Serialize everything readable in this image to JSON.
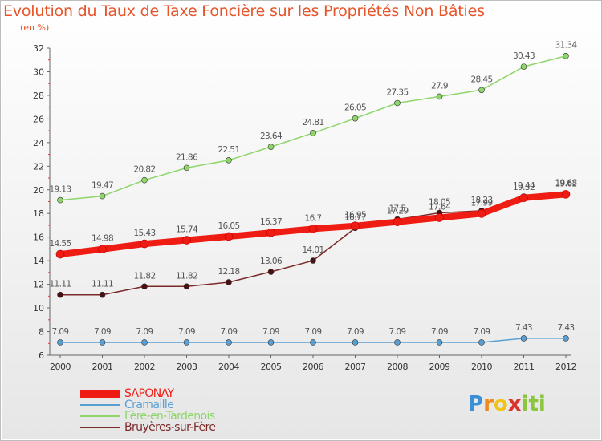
{
  "title": "Evolution du Taux de Taxe Foncière sur les Propriétés Non Bâties",
  "subtitle": "(en %)",
  "logo": {
    "letters": [
      "P",
      "r",
      "o",
      "x",
      "i",
      "t",
      "i"
    ],
    "colors": [
      "#3a8fd6",
      "#f08a1c",
      "#f0c419",
      "#d9342b",
      "#8cc63f",
      "#8cc63f",
      "#8cc63f"
    ]
  },
  "chart_data": {
    "type": "line",
    "title": "Evolution du Taux de Taxe Foncière sur les Propriétés Non Bâties",
    "xlabel": "",
    "ylabel": "(en %)",
    "x": [
      "2000",
      "2001",
      "2002",
      "2003",
      "2004",
      "2005",
      "2006",
      "2007",
      "2008",
      "2009",
      "2010",
      "2011",
      "2012"
    ],
    "ylim": [
      6,
      32
    ],
    "yticks": [
      6,
      8,
      10,
      12,
      14,
      16,
      18,
      20,
      22,
      24,
      26,
      28,
      30,
      32
    ],
    "grid": false,
    "legend_position": "bottom-left",
    "series": [
      {
        "name": "SAPONAY",
        "color": "#ee1c12",
        "values": [
          14.55,
          14.98,
          15.43,
          15.74,
          16.05,
          16.37,
          16.7,
          16.95,
          17.29,
          17.64,
          17.99,
          19.32,
          19.62
        ],
        "labels": [
          "14.55",
          "14.98",
          "15.43",
          "15.74",
          "16.05",
          "16.37",
          "16.7",
          "16.95",
          "17.29",
          "17.64",
          "17.99",
          "19.32",
          "19.62"
        ]
      },
      {
        "name": "Cramaille",
        "color": "#5a9fd4",
        "values": [
          7.09,
          7.09,
          7.09,
          7.09,
          7.09,
          7.09,
          7.09,
          7.09,
          7.09,
          7.09,
          7.09,
          7.43,
          7.43
        ],
        "labels": [
          "7.09",
          "7.09",
          "7.09",
          "7.09",
          "7.09",
          "7.09",
          "7.09",
          "7.09",
          "7.09",
          "7.09",
          "7.09",
          "7.43",
          "7.43"
        ]
      },
      {
        "name": "Fère-en-Tardenois",
        "color": "#8ed56a",
        "values": [
          19.13,
          19.47,
          20.82,
          21.86,
          22.51,
          23.64,
          24.81,
          26.05,
          27.35,
          27.9,
          28.45,
          30.43,
          31.34
        ],
        "labels": [
          "19.13",
          "19.47",
          "20.82",
          "21.86",
          "22.51",
          "23.64",
          "24.81",
          "26.05",
          "27.35",
          "27.9",
          "28.45",
          "30.43",
          "31.34"
        ]
      },
      {
        "name": "Bruyères-sur-Fère",
        "color": "#7b2a2a",
        "values": [
          11.11,
          11.11,
          11.82,
          11.82,
          12.18,
          13.06,
          14.01,
          16.77,
          17.5,
          18.05,
          18.23,
          19.44,
          19.68
        ],
        "labels": [
          "11.11",
          "11.11",
          "11.82",
          "11.82",
          "12.18",
          "13.06",
          "14.01",
          "16.77",
          "17.5",
          "18.05",
          "18.23",
          "19.44",
          "19.68"
        ]
      }
    ]
  }
}
